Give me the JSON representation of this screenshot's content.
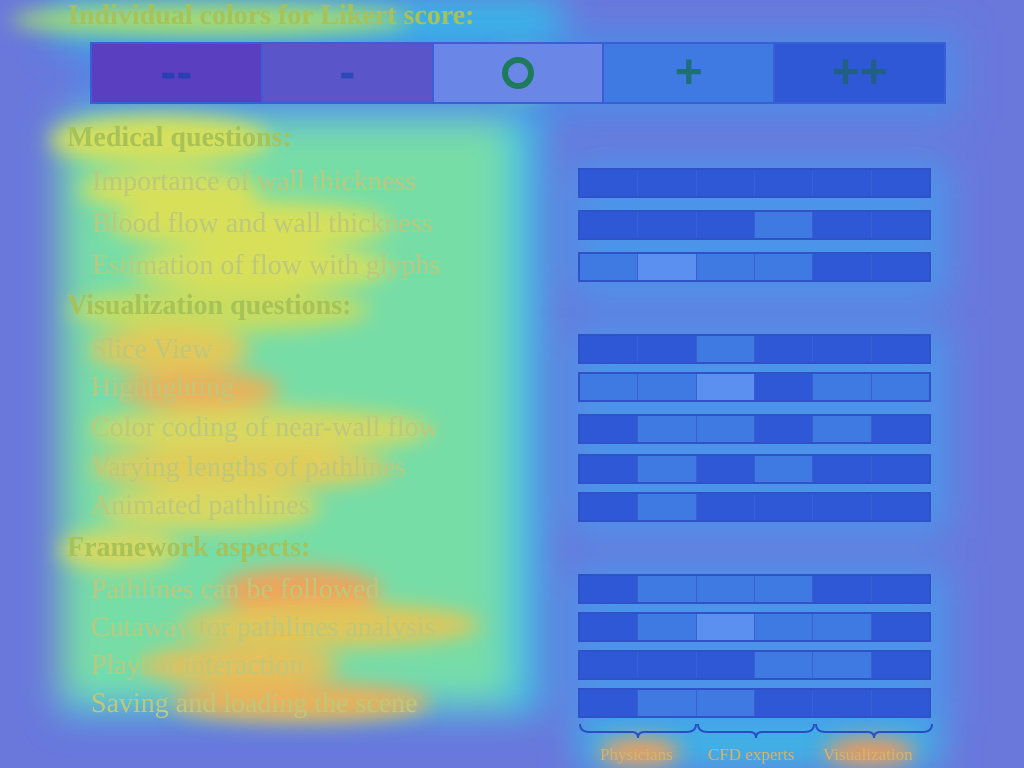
{
  "legend": {
    "title": "Individual colors for Likert score:",
    "items": [
      {
        "symbol": "--",
        "color": "#5a3fc0",
        "glyph_color": "#2c3fb2"
      },
      {
        "symbol": "-",
        "color": "#5a55c8",
        "glyph_color": "#2d49b8"
      },
      {
        "symbol": "o",
        "color": "#6a86e6",
        "glyph_color": "#1d7a5a"
      },
      {
        "symbol": "+",
        "color": "#3f7ae2",
        "glyph_color": "#1f6f78"
      },
      {
        "symbol": "++",
        "color": "#2f58d6",
        "glyph_color": "#215f86"
      }
    ]
  },
  "chart_data": {
    "type": "heatmap",
    "title": "Individual colors for Likert score:",
    "groups": [
      "Physicians",
      "CFD experts",
      "Visualization"
    ],
    "scale": [
      "--",
      "-",
      "o",
      "+",
      "++"
    ],
    "sections": [
      {
        "header": "Medical questions:",
        "rows": [
          {
            "label": "Importance of wall thickness",
            "values": [
              5,
              5,
              5,
              5,
              5,
              5
            ]
          },
          {
            "label": "Blood flow and wall thickness",
            "values": [
              5,
              5,
              5,
              4,
              5,
              5
            ]
          },
          {
            "label": "Estimation of flow with glyphs",
            "values": [
              4,
              3,
              4,
              4,
              5,
              5
            ]
          }
        ]
      },
      {
        "header": "Visualization questions:",
        "rows": [
          {
            "label": "Slice View",
            "values": [
              5,
              5,
              4,
              5,
              5,
              5
            ]
          },
          {
            "label": "Highlighting",
            "values": [
              4,
              4,
              3,
              5,
              4,
              4
            ]
          },
          {
            "label": "Color coding of near-wall flow",
            "values": [
              5,
              4,
              4,
              5,
              4,
              5
            ]
          },
          {
            "label": "Varying lengths of pathlines",
            "values": [
              5,
              4,
              5,
              4,
              5,
              5
            ]
          },
          {
            "label": "Animated pathlines",
            "values": [
              5,
              4,
              5,
              5,
              5,
              5
            ]
          }
        ]
      },
      {
        "header": "Framework aspects:",
        "rows": [
          {
            "label": "Pathlines can be followed",
            "values": [
              5,
              4,
              4,
              4,
              5,
              5
            ]
          },
          {
            "label": "Cutaway for pathlines analysis",
            "values": [
              5,
              4,
              3,
              4,
              4,
              5
            ]
          },
          {
            "label": "Playbar interaction",
            "values": [
              5,
              5,
              5,
              4,
              4,
              5
            ]
          },
          {
            "label": "Saving and loading the scene",
            "values": [
              5,
              4,
              4,
              5,
              5,
              5
            ]
          }
        ]
      }
    ]
  },
  "colors": {
    "5": "#2f58d6",
    "4": "#3f7ae2",
    "3": "#5b8ff0"
  }
}
